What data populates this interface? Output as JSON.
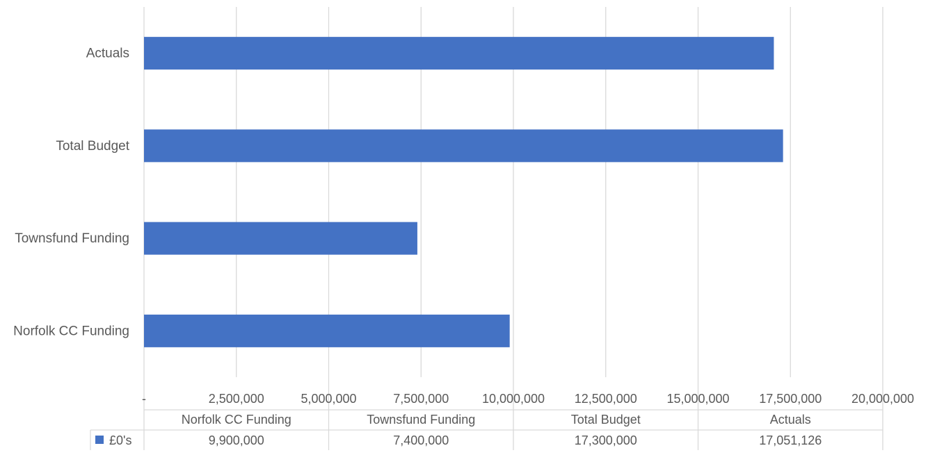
{
  "chart_data": {
    "type": "bar",
    "orientation": "horizontal",
    "title": "",
    "xlabel": "",
    "ylabel": "",
    "categories": [
      "Norfolk CC Funding",
      "Townsfund Funding",
      "Total Budget",
      "Actuals"
    ],
    "series": [
      {
        "name": "£0's",
        "values": [
          9900000,
          7400000,
          17300000,
          17051126
        ],
        "color": "#4472c4"
      }
    ],
    "xlim": [
      0,
      20000000
    ],
    "xticks": [
      0,
      2500000,
      5000000,
      7500000,
      10000000,
      12500000,
      15000000,
      17500000,
      20000000
    ],
    "xtick_labels": [
      "-",
      "2,500,000",
      "5,000,000",
      "7,500,000",
      "10,000,000",
      "12,500,000",
      "15,000,000",
      "17,500,000",
      "20,000,000"
    ],
    "grid": "vertical",
    "legend": "data-table",
    "data_table": {
      "headers": [
        "Norfolk CC Funding",
        "Townsfund Funding",
        "Total Budget",
        "Actuals"
      ],
      "rows": [
        {
          "legend_label": "£0's",
          "cells": [
            "9,900,000",
            "7,400,000",
            "17,300,000",
            "17,051,126"
          ]
        }
      ]
    },
    "colors": {
      "bar": "#4472c4",
      "grid": "#d9d9d9",
      "text": "#595959"
    }
  }
}
